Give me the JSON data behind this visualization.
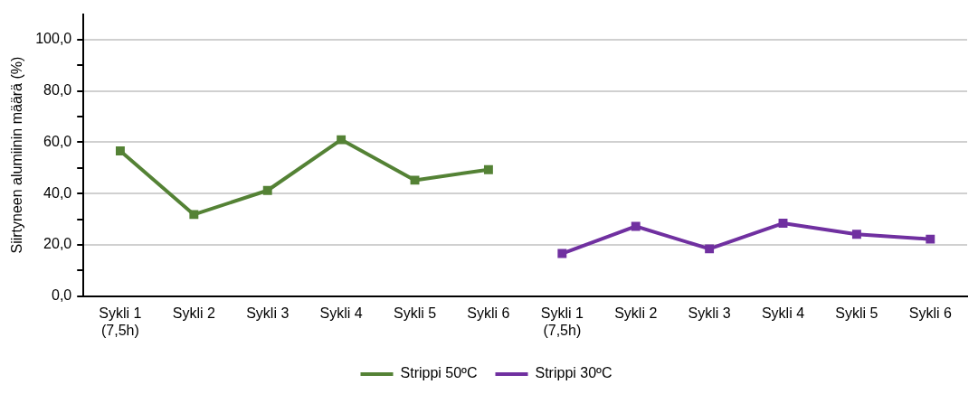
{
  "chart_data": {
    "type": "line",
    "ylabel": "Siirtyneen alumiinin määrä (%)",
    "categories": [
      "Sykli 1\n(7,5h)",
      "Sykli 2",
      "Sykli 3",
      "Sykli 4",
      "Sykli 5",
      "Sykli 6",
      "Sykli 1\n(7,5h)",
      "Sykli 2",
      "Sykli 3",
      "Sykli 4",
      "Sykli 5",
      "Sykli 6"
    ],
    "series": [
      {
        "name": "Strippi 50ºC",
        "color": "#548235",
        "values": [
          56.6,
          31.8,
          41.2,
          61.0,
          45.2,
          49.3,
          null,
          null,
          null,
          null,
          null,
          null
        ]
      },
      {
        "name": "Strippi 30ºC",
        "color": "#7030a0",
        "values": [
          null,
          null,
          null,
          null,
          null,
          null,
          16.6,
          27.2,
          18.4,
          28.4,
          24.1,
          22.2
        ]
      }
    ],
    "ylim": [
      0,
      110
    ],
    "yticks": [
      {
        "value": 0,
        "label": "0,0"
      },
      {
        "value": 10,
        "label": null
      },
      {
        "value": 20,
        "label": "20,0"
      },
      {
        "value": 30,
        "label": null
      },
      {
        "value": 40,
        "label": "40,0"
      },
      {
        "value": 50,
        "label": null
      },
      {
        "value": 60,
        "label": "60,0"
      },
      {
        "value": 70,
        "label": null
      },
      {
        "value": 80,
        "label": "80,0"
      },
      {
        "value": 90,
        "label": null
      },
      {
        "value": 100,
        "label": "100,0"
      }
    ],
    "grid": "y",
    "legend": "bottom",
    "marker": "square",
    "line_style": "solid"
  }
}
